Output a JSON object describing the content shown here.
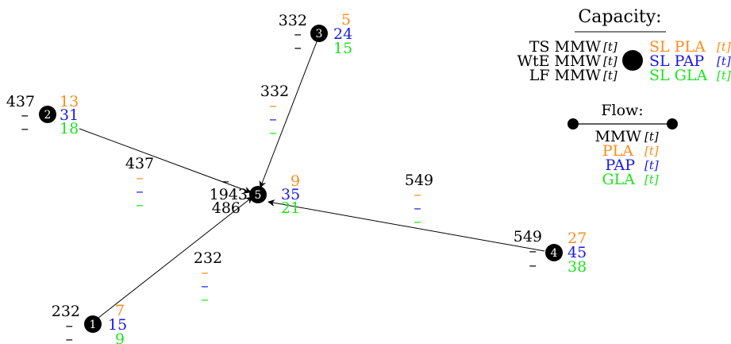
{
  "colors": {
    "mmw": "#000000",
    "pla": "#ff8c1a",
    "pap": "#1a1ae6",
    "gla": "#1ae61a"
  },
  "nodes": [
    {
      "id": "1",
      "ts": "232",
      "wte": "–",
      "lf": "–",
      "pla": "7",
      "pap": "15",
      "gla": "9"
    },
    {
      "id": "2",
      "ts": "437",
      "wte": "–",
      "lf": "–",
      "pla": "13",
      "pap": "31",
      "gla": "18"
    },
    {
      "id": "3",
      "ts": "332",
      "wte": "–",
      "lf": "–",
      "pla": "5",
      "pap": "24",
      "gla": "15"
    },
    {
      "id": "4",
      "ts": "549",
      "wte": "–",
      "lf": "–",
      "pla": "27",
      "pap": "45",
      "gla": "38"
    },
    {
      "id": "5",
      "ts": "–",
      "wte": "1943",
      "lf": "486",
      "pla": "9",
      "pap": "35",
      "gla": "21"
    }
  ],
  "edges": [
    {
      "from": "1",
      "to": "5",
      "mmw": "232",
      "pla": "–",
      "pap": "–",
      "gla": "–"
    },
    {
      "from": "2",
      "to": "5",
      "mmw": "437",
      "pla": "–",
      "pap": "–",
      "gla": "–"
    },
    {
      "from": "3",
      "to": "5",
      "mmw": "332",
      "pla": "–",
      "pap": "–",
      "gla": "–"
    },
    {
      "from": "4",
      "to": "5",
      "mmw": "549",
      "pla": "–",
      "pap": "–",
      "gla": "–"
    }
  ],
  "legend": {
    "capacity_title": "Capacity:",
    "left": [
      "TS MMW",
      "WtE MMW",
      "LF MMW"
    ],
    "right": [
      "SL PLA",
      "SL PAP",
      "SL GLA"
    ],
    "unit": "t",
    "flow_title": "Flow:",
    "flow_items": [
      "MMW",
      "PLA",
      "PAP",
      "GLA"
    ]
  }
}
